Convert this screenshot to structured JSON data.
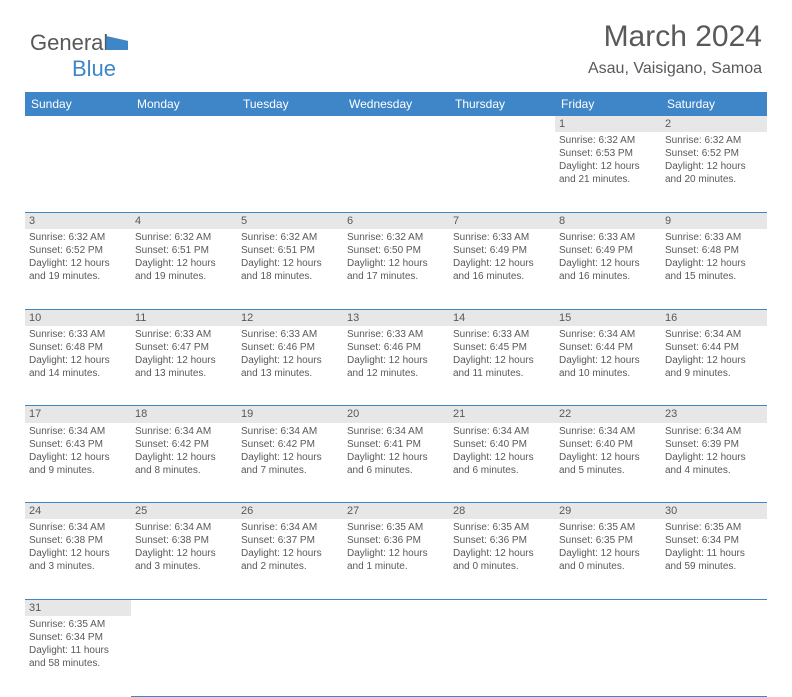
{
  "logo": {
    "part1": "General",
    "part2": "Blue"
  },
  "title": "March 2024",
  "location": "Asau, Vaisigano, Samoa",
  "colors": {
    "header_bg": "#3e86c7",
    "header_text": "#ffffff",
    "daynum_bg": "#e7e7e8",
    "text": "#58595b",
    "border": "#3e86c7"
  },
  "days_of_week": [
    "Sunday",
    "Monday",
    "Tuesday",
    "Wednesday",
    "Thursday",
    "Friday",
    "Saturday"
  ],
  "weeks": [
    [
      null,
      null,
      null,
      null,
      null,
      {
        "n": "1",
        "sr": "Sunrise: 6:32 AM",
        "ss": "Sunset: 6:53 PM",
        "dl": "Daylight: 12 hours and 21 minutes."
      },
      {
        "n": "2",
        "sr": "Sunrise: 6:32 AM",
        "ss": "Sunset: 6:52 PM",
        "dl": "Daylight: 12 hours and 20 minutes."
      }
    ],
    [
      {
        "n": "3",
        "sr": "Sunrise: 6:32 AM",
        "ss": "Sunset: 6:52 PM",
        "dl": "Daylight: 12 hours and 19 minutes."
      },
      {
        "n": "4",
        "sr": "Sunrise: 6:32 AM",
        "ss": "Sunset: 6:51 PM",
        "dl": "Daylight: 12 hours and 19 minutes."
      },
      {
        "n": "5",
        "sr": "Sunrise: 6:32 AM",
        "ss": "Sunset: 6:51 PM",
        "dl": "Daylight: 12 hours and 18 minutes."
      },
      {
        "n": "6",
        "sr": "Sunrise: 6:32 AM",
        "ss": "Sunset: 6:50 PM",
        "dl": "Daylight: 12 hours and 17 minutes."
      },
      {
        "n": "7",
        "sr": "Sunrise: 6:33 AM",
        "ss": "Sunset: 6:49 PM",
        "dl": "Daylight: 12 hours and 16 minutes."
      },
      {
        "n": "8",
        "sr": "Sunrise: 6:33 AM",
        "ss": "Sunset: 6:49 PM",
        "dl": "Daylight: 12 hours and 16 minutes."
      },
      {
        "n": "9",
        "sr": "Sunrise: 6:33 AM",
        "ss": "Sunset: 6:48 PM",
        "dl": "Daylight: 12 hours and 15 minutes."
      }
    ],
    [
      {
        "n": "10",
        "sr": "Sunrise: 6:33 AM",
        "ss": "Sunset: 6:48 PM",
        "dl": "Daylight: 12 hours and 14 minutes."
      },
      {
        "n": "11",
        "sr": "Sunrise: 6:33 AM",
        "ss": "Sunset: 6:47 PM",
        "dl": "Daylight: 12 hours and 13 minutes."
      },
      {
        "n": "12",
        "sr": "Sunrise: 6:33 AM",
        "ss": "Sunset: 6:46 PM",
        "dl": "Daylight: 12 hours and 13 minutes."
      },
      {
        "n": "13",
        "sr": "Sunrise: 6:33 AM",
        "ss": "Sunset: 6:46 PM",
        "dl": "Daylight: 12 hours and 12 minutes."
      },
      {
        "n": "14",
        "sr": "Sunrise: 6:33 AM",
        "ss": "Sunset: 6:45 PM",
        "dl": "Daylight: 12 hours and 11 minutes."
      },
      {
        "n": "15",
        "sr": "Sunrise: 6:34 AM",
        "ss": "Sunset: 6:44 PM",
        "dl": "Daylight: 12 hours and 10 minutes."
      },
      {
        "n": "16",
        "sr": "Sunrise: 6:34 AM",
        "ss": "Sunset: 6:44 PM",
        "dl": "Daylight: 12 hours and 9 minutes."
      }
    ],
    [
      {
        "n": "17",
        "sr": "Sunrise: 6:34 AM",
        "ss": "Sunset: 6:43 PM",
        "dl": "Daylight: 12 hours and 9 minutes."
      },
      {
        "n": "18",
        "sr": "Sunrise: 6:34 AM",
        "ss": "Sunset: 6:42 PM",
        "dl": "Daylight: 12 hours and 8 minutes."
      },
      {
        "n": "19",
        "sr": "Sunrise: 6:34 AM",
        "ss": "Sunset: 6:42 PM",
        "dl": "Daylight: 12 hours and 7 minutes."
      },
      {
        "n": "20",
        "sr": "Sunrise: 6:34 AM",
        "ss": "Sunset: 6:41 PM",
        "dl": "Daylight: 12 hours and 6 minutes."
      },
      {
        "n": "21",
        "sr": "Sunrise: 6:34 AM",
        "ss": "Sunset: 6:40 PM",
        "dl": "Daylight: 12 hours and 6 minutes."
      },
      {
        "n": "22",
        "sr": "Sunrise: 6:34 AM",
        "ss": "Sunset: 6:40 PM",
        "dl": "Daylight: 12 hours and 5 minutes."
      },
      {
        "n": "23",
        "sr": "Sunrise: 6:34 AM",
        "ss": "Sunset: 6:39 PM",
        "dl": "Daylight: 12 hours and 4 minutes."
      }
    ],
    [
      {
        "n": "24",
        "sr": "Sunrise: 6:34 AM",
        "ss": "Sunset: 6:38 PM",
        "dl": "Daylight: 12 hours and 3 minutes."
      },
      {
        "n": "25",
        "sr": "Sunrise: 6:34 AM",
        "ss": "Sunset: 6:38 PM",
        "dl": "Daylight: 12 hours and 3 minutes."
      },
      {
        "n": "26",
        "sr": "Sunrise: 6:34 AM",
        "ss": "Sunset: 6:37 PM",
        "dl": "Daylight: 12 hours and 2 minutes."
      },
      {
        "n": "27",
        "sr": "Sunrise: 6:35 AM",
        "ss": "Sunset: 6:36 PM",
        "dl": "Daylight: 12 hours and 1 minute."
      },
      {
        "n": "28",
        "sr": "Sunrise: 6:35 AM",
        "ss": "Sunset: 6:36 PM",
        "dl": "Daylight: 12 hours and 0 minutes."
      },
      {
        "n": "29",
        "sr": "Sunrise: 6:35 AM",
        "ss": "Sunset: 6:35 PM",
        "dl": "Daylight: 12 hours and 0 minutes."
      },
      {
        "n": "30",
        "sr": "Sunrise: 6:35 AM",
        "ss": "Sunset: 6:34 PM",
        "dl": "Daylight: 11 hours and 59 minutes."
      }
    ],
    [
      {
        "n": "31",
        "sr": "Sunrise: 6:35 AM",
        "ss": "Sunset: 6:34 PM",
        "dl": "Daylight: 11 hours and 58 minutes."
      },
      null,
      null,
      null,
      null,
      null,
      null
    ]
  ]
}
